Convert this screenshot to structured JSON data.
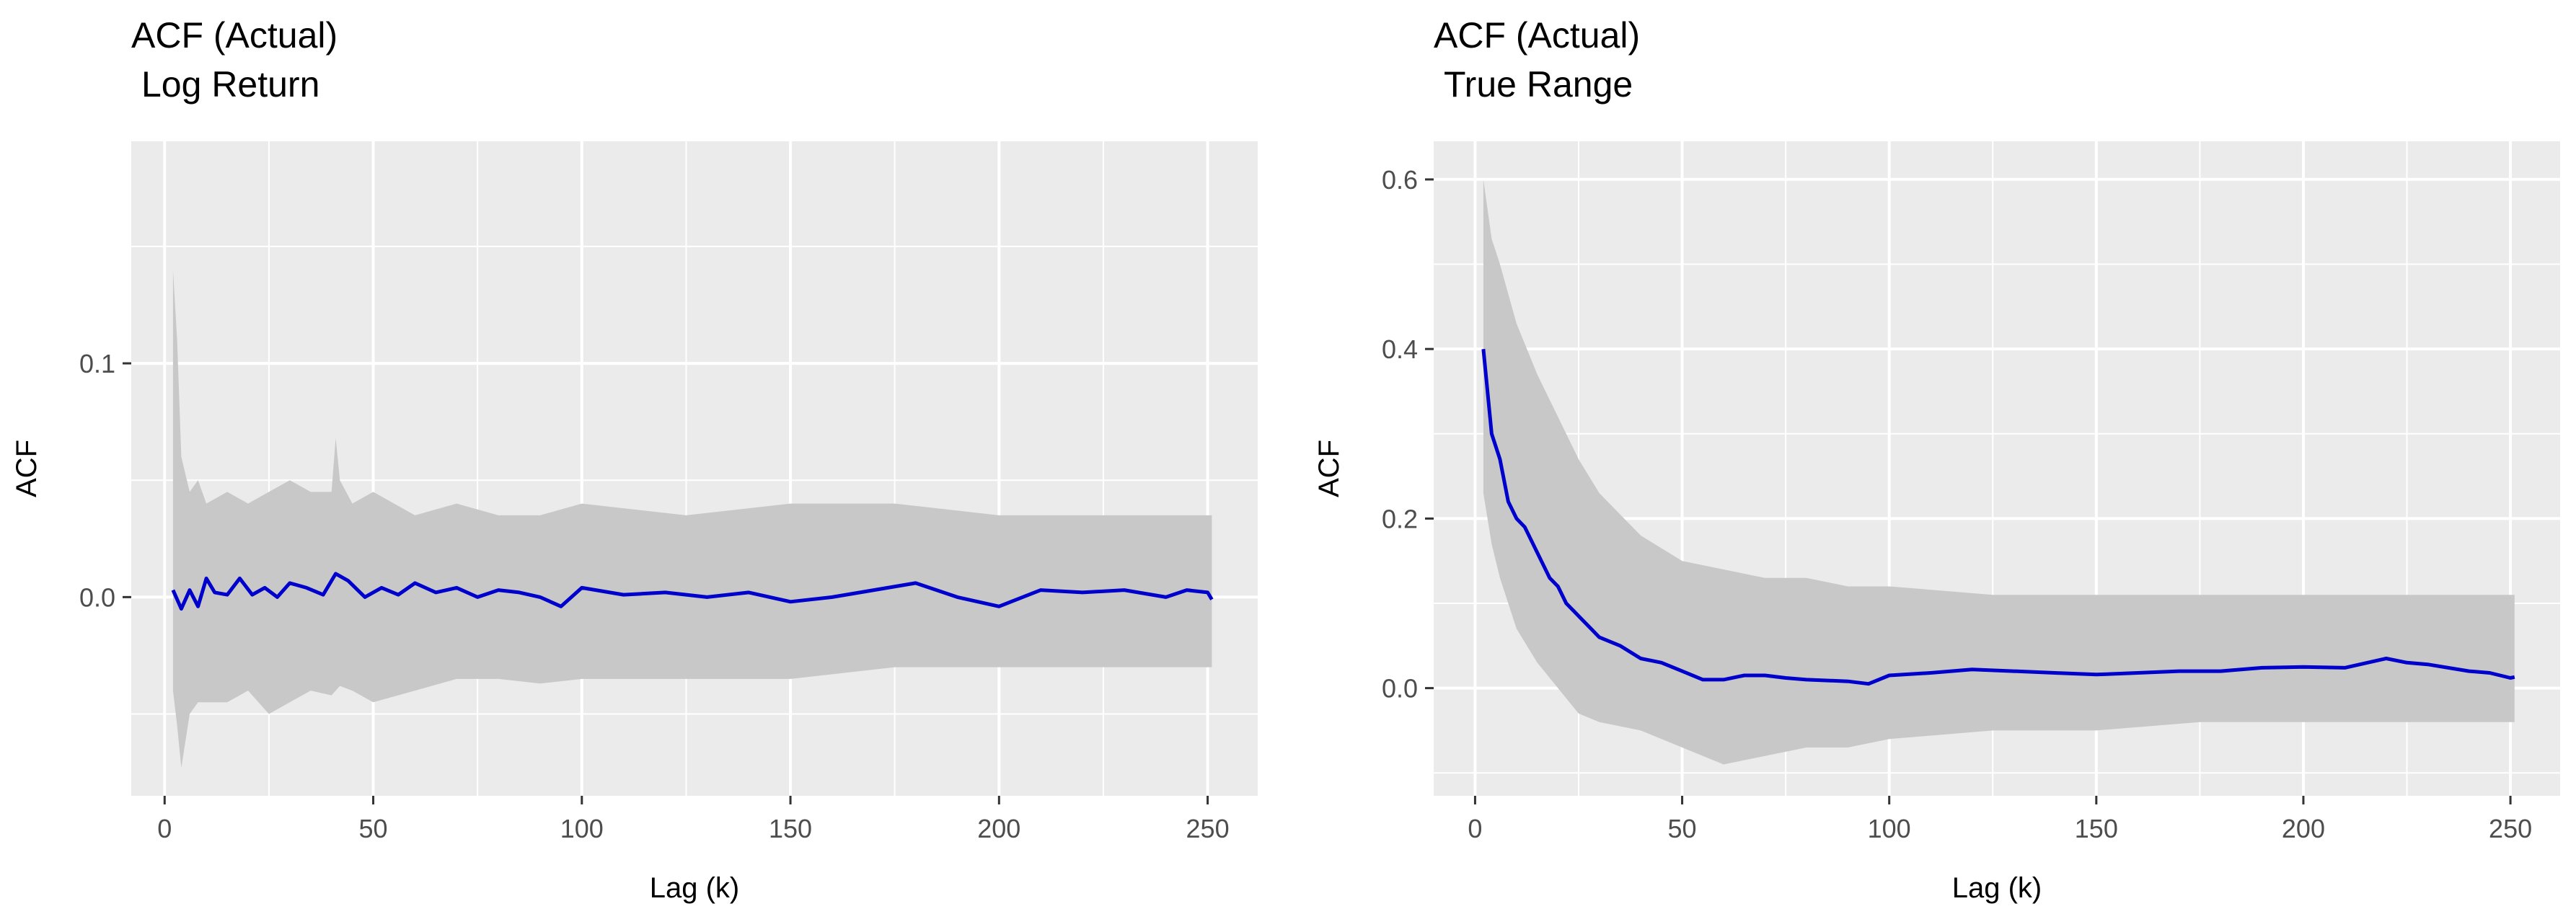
{
  "colors": {
    "panel": "#ebebeb",
    "grid": "#ffffff",
    "band": "#c8c8c8",
    "line": "#0000cd",
    "tick": "#333333"
  },
  "chart_data": [
    {
      "type": "line",
      "title": "ACF (Actual)",
      "subtitle": "Log Return",
      "xlabel": "Lag (k)",
      "ylabel": "ACF",
      "xlim": [
        -8,
        262
      ],
      "ylim": [
        -0.085,
        0.195
      ],
      "x_ticks": [
        0,
        50,
        100,
        150,
        200,
        250
      ],
      "x_tick_labels": [
        "0",
        "50",
        "100",
        "150",
        "200",
        "250"
      ],
      "y_ticks": [
        0.0,
        0.1
      ],
      "y_tick_labels": [
        "0.0",
        "0.1"
      ],
      "y_minor_grid": [
        -0.05,
        0.05,
        0.15
      ],
      "grid": true,
      "legend": "none",
      "series": [
        {
          "kind": "line",
          "x": [
            2,
            4,
            6,
            8,
            10,
            12,
            15,
            18,
            21,
            24,
            27,
            30,
            34,
            38,
            41,
            44,
            48,
            52,
            56,
            60,
            65,
            70,
            75,
            80,
            85,
            90,
            95,
            100,
            110,
            120,
            130,
            140,
            150,
            160,
            170,
            180,
            190,
            200,
            210,
            220,
            230,
            240,
            245,
            250,
            251
          ],
          "y": [
            0.003,
            -0.005,
            0.003,
            -0.004,
            0.008,
            0.002,
            0.001,
            0.008,
            0.001,
            0.004,
            0.0,
            0.006,
            0.004,
            0.001,
            0.01,
            0.007,
            0.0,
            0.004,
            0.001,
            0.006,
            0.002,
            0.004,
            0.0,
            0.003,
            0.002,
            0.0,
            -0.004,
            0.004,
            0.001,
            0.002,
            0.0,
            0.002,
            -0.002,
            0.0,
            0.003,
            0.006,
            0.0,
            -0.004,
            0.003,
            0.002,
            0.003,
            0.0,
            0.003,
            0.002,
            -0.001
          ]
        },
        {
          "kind": "band",
          "x": [
            2,
            3,
            4,
            6,
            8,
            10,
            15,
            20,
            25,
            30,
            35,
            40,
            41,
            42,
            45,
            50,
            60,
            70,
            80,
            90,
            100,
            125,
            150,
            175,
            200,
            225,
            250,
            251
          ],
          "upper": [
            0.14,
            0.11,
            0.06,
            0.045,
            0.05,
            0.04,
            0.045,
            0.04,
            0.045,
            0.05,
            0.045,
            0.045,
            0.068,
            0.05,
            0.04,
            0.045,
            0.035,
            0.04,
            0.035,
            0.035,
            0.04,
            0.035,
            0.04,
            0.04,
            0.035,
            0.035,
            0.035,
            0.035
          ],
          "lower": [
            -0.04,
            -0.055,
            -0.073,
            -0.05,
            -0.045,
            -0.045,
            -0.045,
            -0.04,
            -0.05,
            -0.045,
            -0.04,
            -0.042,
            -0.04,
            -0.038,
            -0.04,
            -0.045,
            -0.04,
            -0.035,
            -0.035,
            -0.037,
            -0.035,
            -0.035,
            -0.035,
            -0.03,
            -0.03,
            -0.03,
            -0.03,
            -0.03
          ]
        }
      ]
    },
    {
      "type": "line",
      "title": "ACF (Actual)",
      "subtitle": "True Range",
      "xlabel": "Lag (k)",
      "ylabel": "ACF",
      "xlim": [
        -10,
        262
      ],
      "ylim": [
        -0.127,
        0.645
      ],
      "x_ticks": [
        0,
        50,
        100,
        150,
        200,
        250
      ],
      "x_tick_labels": [
        "0",
        "50",
        "100",
        "150",
        "200",
        "250"
      ],
      "y_ticks": [
        0.0,
        0.2,
        0.4,
        0.6
      ],
      "y_tick_labels": [
        "0.0",
        "0.2",
        "0.4",
        "0.6"
      ],
      "y_minor_grid": [
        -0.1,
        0.1,
        0.3,
        0.5
      ],
      "grid": true,
      "legend": "none",
      "series": [
        {
          "kind": "line",
          "x": [
            2,
            4,
            6,
            8,
            10,
            12,
            14,
            16,
            18,
            20,
            22,
            24,
            26,
            28,
            30,
            35,
            40,
            45,
            50,
            55,
            60,
            65,
            70,
            75,
            80,
            90,
            95,
            100,
            110,
            120,
            130,
            140,
            150,
            160,
            170,
            180,
            190,
            200,
            210,
            220,
            225,
            230,
            240,
            245,
            250,
            251
          ],
          "y": [
            0.4,
            0.3,
            0.27,
            0.22,
            0.2,
            0.19,
            0.17,
            0.15,
            0.13,
            0.12,
            0.1,
            0.09,
            0.08,
            0.07,
            0.06,
            0.05,
            0.035,
            0.03,
            0.02,
            0.01,
            0.01,
            0.015,
            0.015,
            0.012,
            0.01,
            0.008,
            0.005,
            0.015,
            0.018,
            0.022,
            0.02,
            0.018,
            0.016,
            0.018,
            0.02,
            0.02,
            0.024,
            0.025,
            0.024,
            0.035,
            0.03,
            0.028,
            0.02,
            0.018,
            0.012,
            0.013
          ]
        },
        {
          "kind": "band",
          "x": [
            2,
            4,
            6,
            10,
            15,
            20,
            25,
            30,
            40,
            50,
            60,
            70,
            80,
            90,
            100,
            125,
            150,
            175,
            200,
            225,
            250,
            251
          ],
          "upper": [
            0.6,
            0.53,
            0.5,
            0.43,
            0.37,
            0.32,
            0.27,
            0.23,
            0.18,
            0.15,
            0.14,
            0.13,
            0.13,
            0.12,
            0.12,
            0.11,
            0.11,
            0.11,
            0.11,
            0.11,
            0.11,
            0.11
          ],
          "lower": [
            0.23,
            0.17,
            0.13,
            0.07,
            0.03,
            0.0,
            -0.03,
            -0.04,
            -0.05,
            -0.07,
            -0.09,
            -0.08,
            -0.07,
            -0.07,
            -0.06,
            -0.05,
            -0.05,
            -0.04,
            -0.04,
            -0.04,
            -0.04,
            -0.04
          ]
        }
      ]
    }
  ]
}
